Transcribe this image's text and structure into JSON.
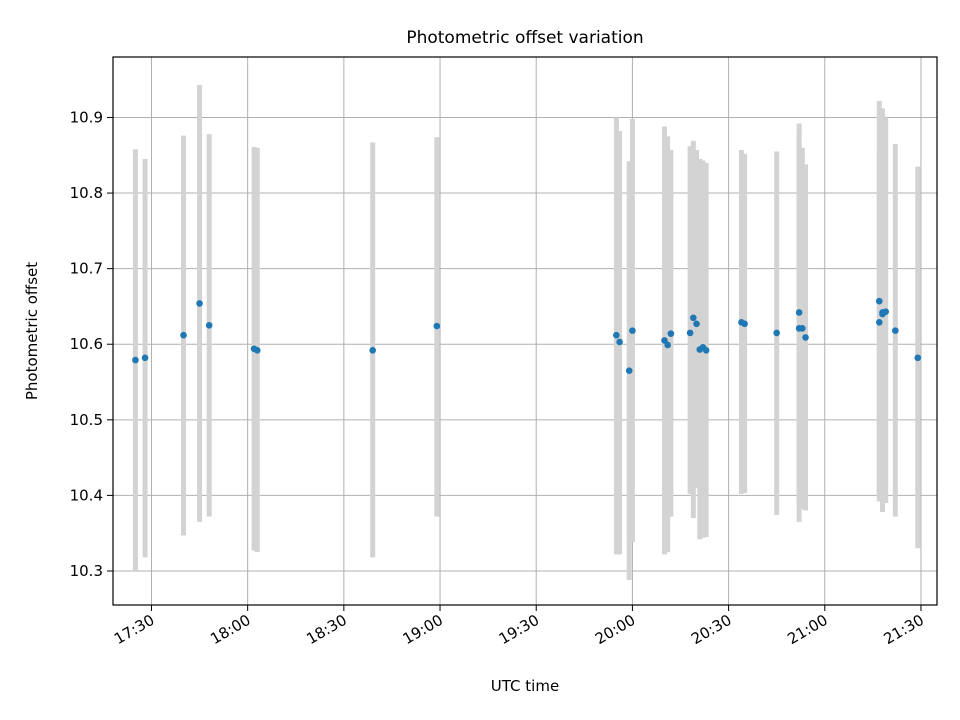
{
  "chart_data": {
    "type": "scatter",
    "title": "Photometric offset variation",
    "xlabel": "UTC time",
    "ylabel": "Photometric offset",
    "x_format": "HH:MM",
    "xlim": [
      "17:18",
      "21:35"
    ],
    "ylim": [
      10.255,
      10.98
    ],
    "x_ticks": [
      "17:30",
      "18:00",
      "18:30",
      "19:00",
      "19:30",
      "20:00",
      "20:30",
      "21:00",
      "21:30"
    ],
    "y_ticks": [
      10.3,
      10.4,
      10.5,
      10.6,
      10.7,
      10.8,
      10.9
    ],
    "y_tick_labels": [
      "10.3",
      "10.4",
      "10.5",
      "10.6",
      "10.7",
      "10.8",
      "10.9"
    ],
    "grid": true,
    "legend": "none",
    "colors": {
      "points": "#1f77b4",
      "error_bars": "#d3d3d3",
      "grid": "#b0b0b0"
    },
    "points": [
      {
        "x": "17:25",
        "y": 10.579,
        "ylow": 10.3,
        "yhigh": 10.858
      },
      {
        "x": "17:28",
        "y": 10.582,
        "ylow": 10.318,
        "yhigh": 10.845
      },
      {
        "x": "17:40",
        "y": 10.612,
        "ylow": 10.347,
        "yhigh": 10.876
      },
      {
        "x": "17:45",
        "y": 10.654,
        "ylow": 10.365,
        "yhigh": 10.943
      },
      {
        "x": "17:48",
        "y": 10.625,
        "ylow": 10.372,
        "yhigh": 10.878
      },
      {
        "x": "18:02",
        "y": 10.594,
        "ylow": 10.327,
        "yhigh": 10.861
      },
      {
        "x": "18:03",
        "y": 10.592,
        "ylow": 10.325,
        "yhigh": 10.86
      },
      {
        "x": "18:39",
        "y": 10.592,
        "ylow": 10.318,
        "yhigh": 10.867
      },
      {
        "x": "18:59",
        "y": 10.624,
        "ylow": 10.372,
        "yhigh": 10.874
      },
      {
        "x": "19:55",
        "y": 10.612,
        "ylow": 10.322,
        "yhigh": 10.9
      },
      {
        "x": "19:56",
        "y": 10.603,
        "ylow": 10.322,
        "yhigh": 10.882
      },
      {
        "x": "19:59",
        "y": 10.565,
        "ylow": 10.288,
        "yhigh": 10.842
      },
      {
        "x": "20:00",
        "y": 10.618,
        "ylow": 10.338,
        "yhigh": 10.898
      },
      {
        "x": "20:10",
        "y": 10.605,
        "ylow": 10.322,
        "yhigh": 10.888
      },
      {
        "x": "20:11",
        "y": 10.599,
        "ylow": 10.325,
        "yhigh": 10.875
      },
      {
        "x": "20:12",
        "y": 10.614,
        "ylow": 10.372,
        "yhigh": 10.857
      },
      {
        "x": "20:18",
        "y": 10.615,
        "ylow": 10.402,
        "yhigh": 10.862
      },
      {
        "x": "20:19",
        "y": 10.635,
        "ylow": 10.37,
        "yhigh": 10.869
      },
      {
        "x": "20:20",
        "y": 10.627,
        "ylow": 10.41,
        "yhigh": 10.857
      },
      {
        "x": "20:21",
        "y": 10.593,
        "ylow": 10.342,
        "yhigh": 10.845
      },
      {
        "x": "20:22",
        "y": 10.596,
        "ylow": 10.344,
        "yhigh": 10.843
      },
      {
        "x": "20:23",
        "y": 10.592,
        "ylow": 10.345,
        "yhigh": 10.84
      },
      {
        "x": "20:34",
        "y": 10.629,
        "ylow": 10.402,
        "yhigh": 10.857
      },
      {
        "x": "20:35",
        "y": 10.627,
        "ylow": 10.403,
        "yhigh": 10.852
      },
      {
        "x": "20:45",
        "y": 10.615,
        "ylow": 10.374,
        "yhigh": 10.855
      },
      {
        "x": "20:52",
        "y": 10.642,
        "ylow": 10.39,
        "yhigh": 10.892
      },
      {
        "x": "20:52",
        "y": 10.621,
        "ylow": 10.365,
        "yhigh": 10.877
      },
      {
        "x": "20:53",
        "y": 10.621,
        "ylow": 10.382,
        "yhigh": 10.86
      },
      {
        "x": "20:54",
        "y": 10.609,
        "ylow": 10.38,
        "yhigh": 10.838
      },
      {
        "x": "21:17",
        "y": 10.657,
        "ylow": 10.392,
        "yhigh": 10.922
      },
      {
        "x": "21:17",
        "y": 10.629,
        "ylow": 10.397,
        "yhigh": 10.86
      },
      {
        "x": "21:18",
        "y": 10.642,
        "ylow": 10.378,
        "yhigh": 10.912
      },
      {
        "x": "21:18",
        "y": 10.64,
        "ylow": 10.385,
        "yhigh": 10.89
      },
      {
        "x": "21:19",
        "y": 10.643,
        "ylow": 10.39,
        "yhigh": 10.9
      },
      {
        "x": "21:22",
        "y": 10.618,
        "ylow": 10.372,
        "yhigh": 10.865
      },
      {
        "x": "21:29",
        "y": 10.582,
        "ylow": 10.33,
        "yhigh": 10.835
      }
    ]
  }
}
